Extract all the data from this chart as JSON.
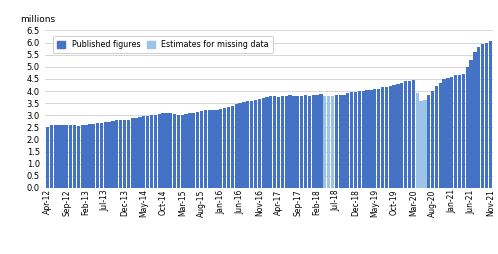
{
  "labels": [
    "Apr-12",
    "May-12",
    "Jun-12",
    "Jul-12",
    "Aug-12",
    "Sep-12",
    "Oct-12",
    "Nov-12",
    "Dec-12",
    "Jan-13",
    "Feb-13",
    "Mar-13",
    "Apr-13",
    "May-13",
    "Jun-13",
    "Jul-13",
    "Aug-13",
    "Sep-13",
    "Oct-13",
    "Nov-13",
    "Dec-13",
    "Jan-14",
    "Feb-14",
    "Mar-14",
    "Apr-14",
    "May-14",
    "Jun-14",
    "Jul-14",
    "Aug-14",
    "Sep-14",
    "Oct-14",
    "Nov-14",
    "Dec-14",
    "Jan-15",
    "Feb-15",
    "Mar-15",
    "Apr-15",
    "May-15",
    "Jun-15",
    "Jul-15",
    "Aug-15",
    "Sep-15",
    "Oct-15",
    "Nov-15",
    "Dec-15",
    "Jan-16",
    "Feb-16",
    "Mar-16",
    "Apr-16",
    "May-16",
    "Jun-16",
    "Jul-16",
    "Aug-16",
    "Sep-16",
    "Oct-16",
    "Nov-16",
    "Dec-16",
    "Jan-17",
    "Feb-17",
    "Mar-17",
    "Apr-17",
    "May-17",
    "Jun-17",
    "Jul-17",
    "Aug-17",
    "Sep-17",
    "Oct-17",
    "Nov-17",
    "Dec-17",
    "Jan-18",
    "Feb-18",
    "Mar-18",
    "Apr-18",
    "May-18",
    "Jun-18",
    "Jul-18",
    "Aug-18",
    "Sep-18",
    "Oct-18",
    "Nov-18",
    "Dec-18",
    "Jan-19",
    "Feb-19",
    "Mar-19",
    "Apr-19",
    "May-19",
    "Jun-19",
    "Jul-19",
    "Aug-19",
    "Sep-19",
    "Oct-19",
    "Nov-19",
    "Dec-19",
    "Jan-20",
    "Feb-20",
    "Mar-20",
    "Apr-20",
    "May-20",
    "Jun-20",
    "Jul-20",
    "Aug-20",
    "Sep-20",
    "Oct-20",
    "Nov-20",
    "Dec-20",
    "Jan-21",
    "Feb-21",
    "Mar-21",
    "Apr-21",
    "May-21",
    "Jun-21",
    "Jul-21",
    "Aug-21",
    "Sep-21",
    "Oct-21",
    "Nov-21"
  ],
  "values": [
    2.5,
    2.58,
    2.6,
    2.58,
    2.58,
    2.6,
    2.6,
    2.58,
    2.55,
    2.58,
    2.6,
    2.62,
    2.65,
    2.68,
    2.7,
    2.72,
    2.72,
    2.75,
    2.8,
    2.82,
    2.8,
    2.82,
    2.88,
    2.9,
    2.92,
    2.95,
    2.98,
    3.0,
    3.02,
    3.05,
    3.08,
    3.1,
    3.1,
    3.05,
    3.0,
    3.02,
    3.05,
    3.08,
    3.1,
    3.15,
    3.18,
    3.2,
    3.22,
    3.22,
    3.2,
    3.25,
    3.3,
    3.35,
    3.4,
    3.45,
    3.5,
    3.55,
    3.58,
    3.6,
    3.65,
    3.68,
    3.7,
    3.75,
    3.78,
    3.8,
    3.75,
    3.78,
    3.8,
    3.82,
    3.8,
    3.78,
    3.8,
    3.82,
    3.8,
    3.85,
    3.85,
    3.88,
    3.78,
    3.8,
    3.8,
    3.82,
    3.82,
    3.85,
    3.9,
    3.95,
    3.98,
    4.0,
    4.02,
    4.05,
    4.05,
    4.1,
    4.1,
    4.15,
    4.18,
    4.2,
    4.25,
    4.3,
    4.35,
    4.4,
    4.42,
    4.45,
    3.9,
    3.6,
    3.65,
    3.85,
    4.0,
    4.2,
    4.35,
    4.5,
    4.55,
    4.6,
    4.65,
    4.68,
    4.7,
    5.0,
    5.3,
    5.6,
    5.8,
    5.95,
    6.0,
    6.05
  ],
  "is_estimate": [
    false,
    false,
    false,
    false,
    false,
    false,
    false,
    false,
    false,
    false,
    false,
    false,
    false,
    false,
    false,
    false,
    false,
    false,
    false,
    false,
    false,
    false,
    false,
    false,
    false,
    false,
    false,
    false,
    false,
    false,
    false,
    false,
    false,
    false,
    false,
    false,
    false,
    false,
    false,
    false,
    false,
    false,
    false,
    false,
    false,
    false,
    false,
    false,
    false,
    false,
    false,
    false,
    false,
    false,
    false,
    false,
    false,
    false,
    false,
    false,
    false,
    false,
    false,
    false,
    false,
    false,
    false,
    false,
    false,
    false,
    false,
    false,
    true,
    true,
    true,
    false,
    false,
    false,
    false,
    false,
    false,
    false,
    false,
    false,
    false,
    false,
    false,
    false,
    false,
    false,
    false,
    false,
    false,
    false,
    false,
    false,
    true,
    true,
    true,
    false,
    false,
    false,
    false,
    false,
    false,
    false,
    false,
    false,
    false,
    false,
    false,
    false,
    false,
    false,
    false,
    false
  ],
  "tick_labels": [
    "Apr-12",
    "Sep-12",
    "Feb-13",
    "Jul-13",
    "Dec-13",
    "May-14",
    "Oct-14",
    "Mar-15",
    "Aug-15",
    "Jan-16",
    "Jun-16",
    "Nov-16",
    "Apr-17",
    "Sep-17",
    "Feb-18",
    "Jul-18",
    "Dec-18",
    "May-19",
    "Oct-19",
    "Mar-20",
    "Aug-20",
    "Jan-21",
    "Jun-21",
    "Nov-21"
  ],
  "published_color": "#4472C4",
  "estimate_color": "#9DC3E6",
  "ylabel": "millions",
  "ylim": [
    0.0,
    6.5
  ],
  "yticks": [
    0.0,
    0.5,
    1.0,
    1.5,
    2.0,
    2.5,
    3.0,
    3.5,
    4.0,
    4.5,
    5.0,
    5.5,
    6.0,
    6.5
  ],
  "legend_published": "Published figures",
  "legend_estimate": "Estimates for missing data",
  "background_color": "#ffffff",
  "grid_color": "#d0d0d0",
  "figsize": [
    4.98,
    2.54
  ],
  "dpi": 100
}
